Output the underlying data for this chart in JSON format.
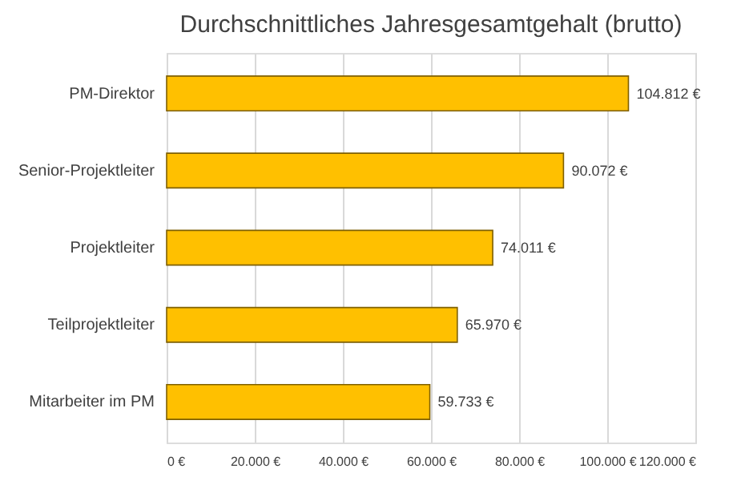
{
  "chart_data": {
    "type": "bar",
    "orientation": "horizontal",
    "title": "Durchschnittliches Jahresgesamtgehalt (brutto)",
    "categories": [
      "PM-Direktor",
      "Senior-Projektleiter",
      "Projektleiter",
      "Teilprojektleiter",
      "Mitarbeiter im PM"
    ],
    "values": [
      104812,
      90072,
      74011,
      65970,
      59733
    ],
    "value_labels": [
      "104.812 €",
      "90.072 €",
      "74.011 €",
      "65.970 €",
      "59.733 €"
    ],
    "color": "#ffc000",
    "xlim": [
      0,
      120000
    ],
    "xticks": [
      {
        "value": 0,
        "label": "0 €"
      },
      {
        "value": 20000,
        "label": "20.000 €"
      },
      {
        "value": 40000,
        "label": "40.000 €"
      },
      {
        "value": 60000,
        "label": "60.000 €"
      },
      {
        "value": 80000,
        "label": "80.000 €"
      },
      {
        "value": 100000,
        "label": "100.000 €"
      },
      {
        "value": 120000,
        "label": "120.000 €"
      }
    ],
    "grid": "x"
  }
}
